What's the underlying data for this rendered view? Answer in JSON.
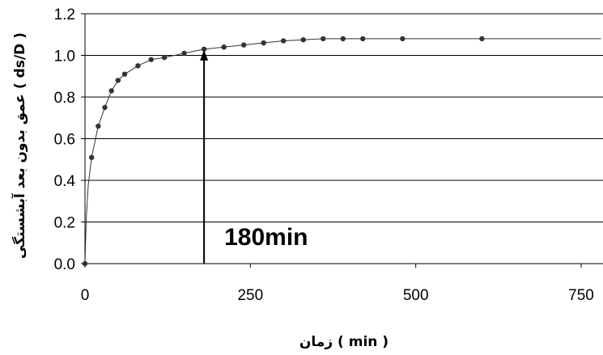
{
  "chart_data": {
    "type": "scatter",
    "xlabel": "زمان ( min )",
    "ylabel": "عمق بدون بعد آبشستگی ( ds/D )",
    "xlim": [
      0,
      750
    ],
    "ylim": [
      0,
      1.2
    ],
    "x_ticks": [
      "0",
      "250",
      "500",
      "750"
    ],
    "y_ticks": [
      "0.0",
      "0.2",
      "0.4",
      "0.6",
      "0.8",
      "1.0",
      "1.2"
    ],
    "grid": "horizontal",
    "series": [
      {
        "color": "#333333",
        "points": [
          [
            0,
            0.0
          ],
          [
            10,
            0.51
          ],
          [
            20,
            0.66
          ],
          [
            30,
            0.75
          ],
          [
            40,
            0.83
          ],
          [
            50,
            0.88
          ],
          [
            60,
            0.91
          ],
          [
            80,
            0.95
          ],
          [
            100,
            0.98
          ],
          [
            120,
            0.99
          ],
          [
            150,
            1.01
          ],
          [
            180,
            1.03
          ],
          [
            210,
            1.04
          ],
          [
            240,
            1.05
          ],
          [
            270,
            1.06
          ],
          [
            300,
            1.07
          ],
          [
            330,
            1.075
          ],
          [
            360,
            1.08
          ],
          [
            390,
            1.08
          ],
          [
            420,
            1.08
          ],
          [
            480,
            1.08
          ],
          [
            600,
            1.08
          ]
        ]
      }
    ],
    "fit_curve_end": [
      780,
      1.08
    ],
    "annotation": {
      "text": "180min",
      "x": 180,
      "y_from": 0.0,
      "y_to": 1.03
    }
  }
}
